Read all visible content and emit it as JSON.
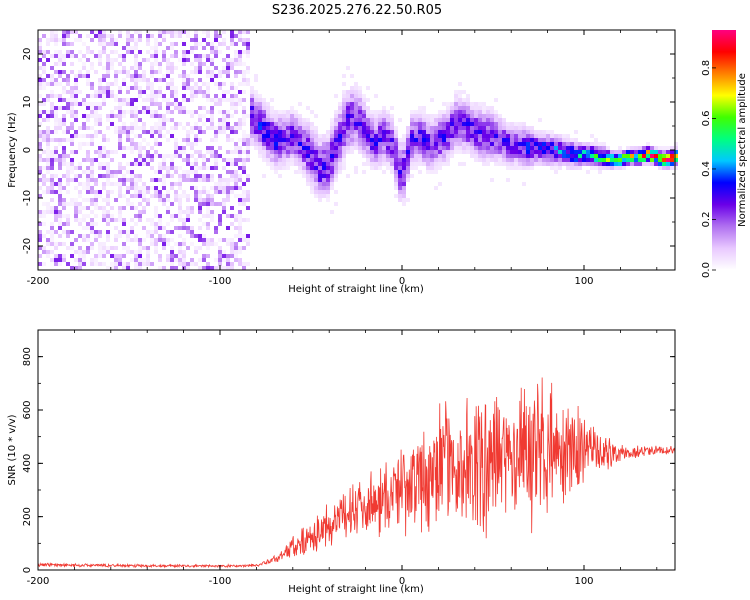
{
  "figure_title": "S236.2025.276.22.50.R05",
  "chart_data": [
    {
      "type": "heatmap",
      "title": "S236.2025.276.22.50.R05",
      "xlabel": "Height of straight line (km)",
      "ylabel": "Frequency (Hz)",
      "xlim": [
        -200,
        150
      ],
      "ylim": [
        -25,
        25
      ],
      "xticks": [
        -200,
        -100,
        0,
        100
      ],
      "yticks": [
        -20,
        -10,
        0,
        10,
        20
      ],
      "colorbar": {
        "label": "Normalized spectral amplitude",
        "range": [
          0,
          0.95
        ],
        "ticks": [
          "0.0",
          "0.2",
          "0.4",
          "0.6",
          "0.8"
        ],
        "colors": [
          "#ffffff",
          "#e8c8ff",
          "#b070f0",
          "#6a00e8",
          "#0000ff",
          "#00c8ff",
          "#00ff80",
          "#40ff00",
          "#ffff00",
          "#ff8000",
          "#ff0000",
          "#ff0080"
        ]
      },
      "noise_region": {
        "x": [
          -200,
          -83
        ],
        "f": [
          -25,
          25
        ]
      },
      "ridge": {
        "x": [
          -85,
          -80,
          -75,
          -70,
          -65,
          -60,
          -55,
          -50,
          -45,
          -40,
          -35,
          -30,
          -25,
          -20,
          -15,
          -10,
          -5,
          0,
          5,
          10,
          15,
          20,
          25,
          30,
          35,
          40,
          45,
          50,
          55,
          60,
          65,
          70,
          75,
          80,
          85,
          90,
          95,
          100,
          105,
          110,
          115,
          120,
          125,
          130,
          135,
          140,
          145,
          150
        ],
        "f": [
          8,
          6,
          4,
          2,
          2,
          3,
          1,
          -1,
          -4,
          -3,
          2,
          6,
          7,
          4,
          1,
          3,
          1,
          -6,
          2,
          3,
          1,
          2,
          3,
          6,
          5,
          4,
          3,
          3,
          2,
          1,
          1,
          0.5,
          0.5,
          0,
          0,
          -0.5,
          -1,
          -1,
          -1,
          -1.5,
          -2,
          -2,
          -1.5,
          -1.5,
          -1,
          -1.5,
          -2,
          -1.5
        ],
        "spread": [
          5,
          5,
          5,
          5,
          5,
          5,
          5,
          6,
          6,
          6,
          6,
          6,
          6,
          5,
          5,
          5,
          5,
          6,
          5,
          5,
          5,
          5,
          5,
          5,
          5,
          5,
          5,
          5,
          4,
          4,
          4,
          4,
          3,
          3,
          3,
          2.5,
          2.5,
          2,
          2,
          2,
          1.5,
          1.5,
          1.5,
          1.5,
          1.5,
          1.5,
          1.5,
          1.5
        ],
        "amplitude": [
          0.35,
          0.35,
          0.35,
          0.35,
          0.3,
          0.3,
          0.3,
          0.3,
          0.3,
          0.3,
          0.3,
          0.3,
          0.3,
          0.3,
          0.3,
          0.3,
          0.3,
          0.3,
          0.3,
          0.3,
          0.3,
          0.3,
          0.3,
          0.3,
          0.3,
          0.3,
          0.3,
          0.3,
          0.3,
          0.3,
          0.3,
          0.35,
          0.35,
          0.4,
          0.4,
          0.45,
          0.45,
          0.5,
          0.55,
          0.6,
          0.65,
          0.7,
          0.75,
          0.8,
          0.85,
          0.9,
          0.92,
          0.9
        ]
      }
    },
    {
      "type": "line",
      "xlabel": "Height of straight line (km)",
      "ylabel": "SNR (10 * v/v)",
      "xlim": [
        -200,
        150
      ],
      "ylim": [
        0,
        900
      ],
      "xticks": [
        -200,
        -100,
        0,
        100
      ],
      "yticks": [
        0,
        200,
        400,
        600,
        800
      ],
      "color": "#f03a32",
      "series": [
        {
          "name": "SNR",
          "x": [
            -200,
            -180,
            -160,
            -140,
            -120,
            -100,
            -90,
            -80,
            -75,
            -70,
            -65,
            -60,
            -55,
            -50,
            -45,
            -40,
            -35,
            -30,
            -25,
            -20,
            -15,
            -10,
            -5,
            0,
            5,
            10,
            15,
            20,
            25,
            30,
            35,
            40,
            45,
            50,
            55,
            60,
            65,
            70,
            75,
            80,
            85,
            90,
            95,
            100,
            105,
            110,
            115,
            120,
            125,
            130,
            135,
            140,
            145,
            150
          ],
          "mean": [
            20,
            18,
            17,
            16,
            15,
            15,
            15,
            18,
            25,
            40,
            60,
            90,
            110,
            130,
            150,
            170,
            190,
            220,
            240,
            260,
            250,
            270,
            290,
            300,
            320,
            340,
            330,
            380,
            400,
            400,
            380,
            390,
            390,
            420,
            430,
            420,
            440,
            450,
            470,
            440,
            440,
            450,
            440,
            450,
            450,
            440,
            440,
            430,
            440,
            440,
            450,
            450,
            450,
            450
          ],
          "amp": [
            8,
            7,
            7,
            7,
            6,
            6,
            6,
            8,
            10,
            20,
            30,
            50,
            70,
            80,
            90,
            100,
            110,
            120,
            130,
            130,
            140,
            160,
            170,
            190,
            200,
            230,
            240,
            250,
            260,
            270,
            290,
            300,
            300,
            320,
            320,
            330,
            340,
            340,
            330,
            300,
            250,
            220,
            200,
            160,
            120,
            100,
            60,
            40,
            30,
            30,
            25,
            25,
            25,
            25
          ]
        }
      ]
    }
  ]
}
